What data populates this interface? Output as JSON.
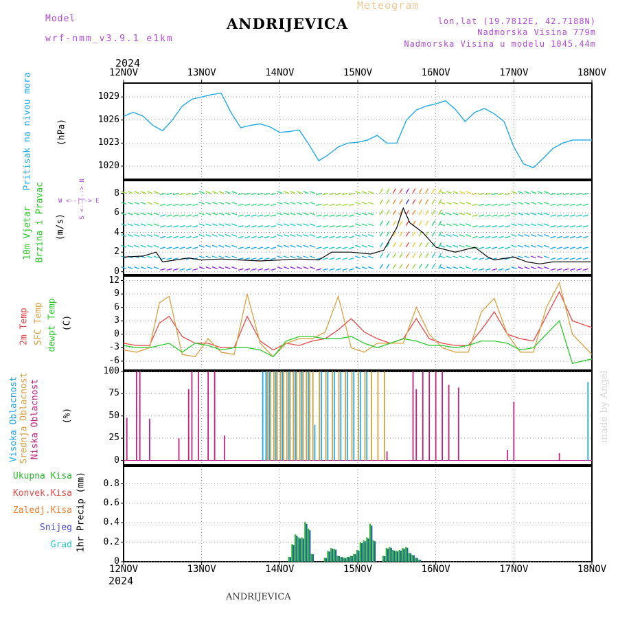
{
  "header": {
    "model_label": "Model",
    "model_name": "wrf-nmm_v3.9.1 e1km",
    "title": "ANDRIJEVICA",
    "meteogram_label": "Meteogram",
    "lonlat": "lon,lat (19.7812E, 42.7188N)",
    "elevation": "Nadmorska Visina 779m",
    "model_elevation": "Nadmorska Visina u modelu 1045.44m",
    "year_top": "2024",
    "year_bottom": "2024",
    "footer_station": "ANDRIJEVICA",
    "watermark": "made by Angel"
  },
  "dates": [
    "12NOV",
    "13NOV",
    "14NOV",
    "15NOV",
    "16NOV",
    "17NOV",
    "18NOV"
  ],
  "panels": {
    "pressure": {
      "title": "Pritisak na nivou mora",
      "unit": "(hPa)",
      "color": "#20a8e8",
      "ticks": [
        "1029",
        "1026",
        "1023",
        "1020"
      ]
    },
    "wind": {
      "title_a": "10m Vjetar",
      "title_b": "Brzina i Pravac",
      "unit": "(m/s)",
      "compass": "W <--|--> E",
      "compass_ns": "S <--|--> N",
      "ticks": [
        "8",
        "6",
        "4",
        "2",
        "0"
      ]
    },
    "temp": {
      "t2m": "2m Temp",
      "tsfc": "SFC Temp",
      "dew": "dewpt Temp",
      "unit": "(C)",
      "ticks": [
        "12",
        "9",
        "6",
        "3",
        "0",
        "-3",
        "-6"
      ]
    },
    "cloud": {
      "high": "Visoka Oblacnost",
      "mid": "Srednja Oblacnost",
      "low": "Niska Oblacnost",
      "unit": "(%)",
      "ticks": [
        "100",
        "75",
        "50",
        "25",
        "0"
      ]
    },
    "precip": {
      "total": "Ukupna Kisa",
      "conv": "Konvek.Kisa",
      "frozen": "Zaledj.Kisa",
      "snow": "Snijeg",
      "grad": "Grad",
      "unit": "1hr Precip (mm)",
      "ticks": [
        "0.8",
        "0.6",
        "0.4",
        "0.2",
        "0"
      ]
    }
  },
  "colors": {
    "pressure": "#20a8e8",
    "t2m": "#e84848",
    "tsfc": "#d8a040",
    "dewpt": "#28c828",
    "high_cloud": "#20a8e8",
    "mid_cloud": "#d8a040",
    "low_cloud": "#c02080",
    "total_precip": "#28b828",
    "conv_precip": "#e84848",
    "frozen_precip": "#f08030",
    "snow": "#4848e0",
    "grad": "#20c8c8",
    "purple_text": "#b048d8",
    "title_orange": "#f0c890"
  },
  "chart_data": [
    {
      "type": "line",
      "name": "pressure",
      "x_unit": "hours since 12NOV 00",
      "x": [
        0,
        3,
        6,
        9,
        12,
        15,
        18,
        21,
        24,
        27,
        30,
        33,
        36,
        39,
        42,
        45,
        48,
        51,
        54,
        57,
        60,
        63,
        66,
        69,
        72,
        75,
        78,
        81,
        84,
        87,
        90,
        93,
        96,
        99,
        102,
        105,
        108,
        111,
        114,
        117,
        120,
        123,
        126,
        129,
        132,
        135,
        138,
        141,
        144
      ],
      "y": [
        1026.5,
        1027.0,
        1026.5,
        1025.3,
        1024.6,
        1026.0,
        1027.8,
        1028.7,
        1029.0,
        1029.3,
        1029.5,
        1027.0,
        1025.0,
        1025.3,
        1025.5,
        1025.1,
        1024.4,
        1024.5,
        1024.7,
        1022.8,
        1020.7,
        1021.5,
        1022.5,
        1023.0,
        1023.1,
        1023.4,
        1024.0,
        1023.0,
        1023.0,
        1026.0,
        1027.3,
        1027.8,
        1028.1,
        1028.5,
        1027.4,
        1025.8,
        1027.0,
        1027.5,
        1026.8,
        1025.8,
        1022.5,
        1020.3,
        1019.8,
        1021.0,
        1022.3,
        1023.0,
        1023.4,
        1023.4,
        1023.4
      ],
      "ylim": [
        1018.3,
        1030.8
      ]
    },
    {
      "type": "line",
      "name": "wind speed",
      "x": [
        0,
        6,
        10,
        12,
        16,
        20,
        24,
        30,
        36,
        42,
        48,
        54,
        60,
        64,
        70,
        76,
        80,
        84,
        86,
        88,
        92,
        96,
        102,
        108,
        112,
        114,
        120,
        124,
        128,
        132,
        136,
        140,
        144
      ],
      "y": [
        1.5,
        1.6,
        2.0,
        1.0,
        1.2,
        1.4,
        1.2,
        1.3,
        1.2,
        1.1,
        1.2,
        1.3,
        1.2,
        2.0,
        2.0,
        1.8,
        2.2,
        4.5,
        6.5,
        5.0,
        4.0,
        2.5,
        2.0,
        2.5,
        1.5,
        1.2,
        1.5,
        1.0,
        0.8,
        1.0,
        1.0,
        1.0,
        1.0
      ],
      "ylim": [
        -0.3,
        9.3
      ]
    },
    {
      "type": "line",
      "series": [
        {
          "name": "2m Temp",
          "x": [
            0,
            4,
            8,
            11,
            14,
            18,
            22,
            26,
            30,
            34,
            38,
            42,
            46,
            50,
            54,
            58,
            62,
            66,
            70,
            74,
            78,
            82,
            86,
            90,
            94,
            98,
            102,
            106,
            110,
            114,
            118,
            122,
            126,
            130,
            134,
            138,
            144
          ],
          "y": [
            -2.0,
            -2.5,
            -2.5,
            2.5,
            4.0,
            -0.5,
            -2.0,
            -2.0,
            -3.0,
            -3.0,
            4.0,
            -1.5,
            -3.5,
            -2.0,
            -2.5,
            -1.5,
            -1.0,
            1.0,
            3.5,
            0.5,
            -1.0,
            -2.0,
            -1.0,
            3.5,
            -1.0,
            -2.0,
            -2.5,
            -2.5,
            1.0,
            5.0,
            0.0,
            -1.0,
            -1.5,
            4.0,
            9.5,
            3.0,
            1.5
          ]
        },
        {
          "name": "SFC Temp",
          "x": [
            0,
            4,
            8,
            11,
            14,
            18,
            22,
            26,
            30,
            34,
            38,
            42,
            46,
            50,
            54,
            58,
            62,
            66,
            70,
            74,
            78,
            82,
            86,
            90,
            94,
            98,
            102,
            106,
            110,
            114,
            118,
            122,
            126,
            130,
            134,
            138,
            144
          ],
          "y": [
            -3.5,
            -4.0,
            -3.0,
            7.0,
            8.5,
            -4.5,
            -5.0,
            -1.0,
            -4.0,
            -4.5,
            9.0,
            -2.0,
            -5.0,
            -2.0,
            -1.0,
            -1.0,
            0.5,
            8.5,
            -3.0,
            -4.0,
            -2.0,
            -2.0,
            -2.0,
            6.0,
            0.0,
            -3.0,
            -4.0,
            -4.0,
            5.0,
            8.0,
            0.0,
            -4.0,
            -4.0,
            6.0,
            11.5,
            0.0,
            -4.5
          ]
        },
        {
          "name": "dewpt Temp",
          "x": [
            0,
            4,
            8,
            11,
            14,
            18,
            22,
            26,
            30,
            34,
            38,
            42,
            46,
            50,
            54,
            58,
            62,
            66,
            70,
            74,
            78,
            82,
            86,
            90,
            94,
            98,
            102,
            106,
            110,
            114,
            118,
            122,
            126,
            130,
            134,
            138,
            144
          ],
          "y": [
            -2.5,
            -3.0,
            -3.0,
            -2.5,
            -2.0,
            -4.0,
            -2.0,
            -2.5,
            -3.5,
            -3.0,
            -3.0,
            -3.5,
            -5.0,
            -1.5,
            -0.5,
            -0.5,
            -1.0,
            -1.0,
            -0.5,
            -2.0,
            -3.0,
            -2.0,
            -1.0,
            -1.5,
            -2.5,
            -2.5,
            -3.0,
            -2.5,
            -1.5,
            -1.5,
            -2.0,
            -3.5,
            -3.0,
            0.0,
            3.0,
            -6.5,
            -5.5
          ]
        }
      ],
      "ylim": [
        -8,
        13
      ]
    },
    {
      "type": "bar",
      "name": "cloud cover (%)",
      "low": [
        {
          "x": 1,
          "v": 48
        },
        {
          "x": 4,
          "v": 100
        },
        {
          "x": 5,
          "v": 100
        },
        {
          "x": 8,
          "v": 47
        },
        {
          "x": 17,
          "v": 25
        },
        {
          "x": 20,
          "v": 80
        },
        {
          "x": 21,
          "v": 100
        },
        {
          "x": 23,
          "v": 100
        },
        {
          "x": 26,
          "v": 100
        },
        {
          "x": 28,
          "v": 100
        },
        {
          "x": 31,
          "v": 28
        },
        {
          "x": 81,
          "v": 10
        },
        {
          "x": 89,
          "v": 100
        },
        {
          "x": 90,
          "v": 80
        },
        {
          "x": 92,
          "v": 100
        },
        {
          "x": 94,
          "v": 100
        },
        {
          "x": 96,
          "v": 100
        },
        {
          "x": 98,
          "v": 100
        },
        {
          "x": 100,
          "v": 85
        },
        {
          "x": 103,
          "v": 82
        },
        {
          "x": 118,
          "v": 12
        },
        {
          "x": 120,
          "v": 66
        },
        {
          "x": 134,
          "v": 8
        }
      ],
      "mid": [
        {
          "x": 44,
          "v": 100
        },
        {
          "x": 45,
          "v": 100
        },
        {
          "x": 46,
          "v": 100
        },
        {
          "x": 47,
          "v": 100
        },
        {
          "x": 48,
          "v": 100
        },
        {
          "x": 49,
          "v": 100
        },
        {
          "x": 50,
          "v": 100
        },
        {
          "x": 51,
          "v": 100
        },
        {
          "x": 52,
          "v": 100
        },
        {
          "x": 53,
          "v": 100
        },
        {
          "x": 54,
          "v": 100
        },
        {
          "x": 55,
          "v": 100
        },
        {
          "x": 56,
          "v": 100
        },
        {
          "x": 57,
          "v": 100
        },
        {
          "x": 58,
          "v": 100
        },
        {
          "x": 60,
          "v": 100
        },
        {
          "x": 62,
          "v": 100
        },
        {
          "x": 64,
          "v": 100
        },
        {
          "x": 66,
          "v": 100
        },
        {
          "x": 68,
          "v": 100
        },
        {
          "x": 70,
          "v": 100
        },
        {
          "x": 72,
          "v": 100
        },
        {
          "x": 74,
          "v": 100
        },
        {
          "x": 76,
          "v": 100
        },
        {
          "x": 78,
          "v": 100
        },
        {
          "x": 80,
          "v": 100
        }
      ],
      "high": [
        {
          "x": 43,
          "v": 100
        },
        {
          "x": 44,
          "v": 100
        },
        {
          "x": 45,
          "v": 100
        },
        {
          "x": 47,
          "v": 100
        },
        {
          "x": 49,
          "v": 100
        },
        {
          "x": 51,
          "v": 100
        },
        {
          "x": 53,
          "v": 100
        },
        {
          "x": 55,
          "v": 100
        },
        {
          "x": 57,
          "v": 100
        },
        {
          "x": 59,
          "v": 40
        },
        {
          "x": 61,
          "v": 100
        },
        {
          "x": 63,
          "v": 100
        },
        {
          "x": 65,
          "v": 100
        },
        {
          "x": 67,
          "v": 100
        },
        {
          "x": 69,
          "v": 100
        },
        {
          "x": 71,
          "v": 100
        },
        {
          "x": 73,
          "v": 100
        },
        {
          "x": 75,
          "v": 100
        },
        {
          "x": 143,
          "v": 88
        }
      ],
      "ylim": [
        -5,
        100
      ]
    },
    {
      "type": "bar",
      "name": "1hr precip (mm)",
      "total": [
        {
          "x": 51,
          "v": 0.05
        },
        {
          "x": 52,
          "v": 0.18
        },
        {
          "x": 53,
          "v": 0.28
        },
        {
          "x": 54,
          "v": 0.25
        },
        {
          "x": 55,
          "v": 0.25
        },
        {
          "x": 56,
          "v": 0.41
        },
        {
          "x": 57,
          "v": 0.34
        },
        {
          "x": 58,
          "v": 0.08
        },
        {
          "x": 62,
          "v": 0.04
        },
        {
          "x": 63,
          "v": 0.11
        },
        {
          "x": 64,
          "v": 0.14
        },
        {
          "x": 65,
          "v": 0.13
        },
        {
          "x": 66,
          "v": 0.06
        },
        {
          "x": 67,
          "v": 0.05
        },
        {
          "x": 68,
          "v": 0.04
        },
        {
          "x": 69,
          "v": 0.05
        },
        {
          "x": 70,
          "v": 0.06
        },
        {
          "x": 71,
          "v": 0.08
        },
        {
          "x": 72,
          "v": 0.12
        },
        {
          "x": 73,
          "v": 0.2
        },
        {
          "x": 74,
          "v": 0.22
        },
        {
          "x": 75,
          "v": 0.25
        },
        {
          "x": 76,
          "v": 0.39
        },
        {
          "x": 77,
          "v": 0.22
        },
        {
          "x": 80,
          "v": 0.06
        },
        {
          "x": 81,
          "v": 0.14
        },
        {
          "x": 82,
          "v": 0.15
        },
        {
          "x": 83,
          "v": 0.12
        },
        {
          "x": 84,
          "v": 0.11
        },
        {
          "x": 85,
          "v": 0.12
        },
        {
          "x": 86,
          "v": 0.14
        },
        {
          "x": 87,
          "v": 0.15
        },
        {
          "x": 88,
          "v": 0.09
        },
        {
          "x": 89,
          "v": 0.07
        },
        {
          "x": 90,
          "v": 0.04
        },
        {
          "x": 91,
          "v": 0.02
        }
      ],
      "ylim": [
        0,
        0.98
      ]
    }
  ]
}
